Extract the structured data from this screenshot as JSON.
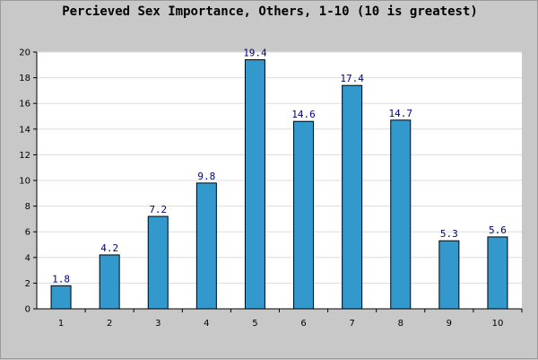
{
  "chart_data": {
    "type": "bar",
    "title": "Percieved Sex Importance, Others, 1-10 (10 is greatest)",
    "xlabel": "",
    "ylabel": "",
    "categories": [
      "1",
      "2",
      "3",
      "4",
      "5",
      "6",
      "7",
      "8",
      "9",
      "10"
    ],
    "values": [
      1.8,
      4.2,
      7.2,
      9.8,
      19.4,
      14.6,
      17.4,
      14.7,
      5.3,
      5.6
    ],
    "data_labels": [
      "1.8",
      "4.2",
      "7.2",
      "9.8",
      "19.4",
      "14.6",
      "17.4",
      "14.7",
      "5.3",
      "5.6"
    ],
    "ylim": [
      0,
      20
    ],
    "yticks": [
      0,
      2,
      4,
      6,
      8,
      10,
      12,
      14,
      16,
      18,
      20
    ],
    "grid": true,
    "legend": "none",
    "colors": {
      "bar": "#3399cc",
      "bar_stroke": "#000000",
      "plot_background": "#ffffff",
      "page_background": "#c8c8c8",
      "grid": "#dddddd",
      "data_label": "#000080"
    }
  }
}
